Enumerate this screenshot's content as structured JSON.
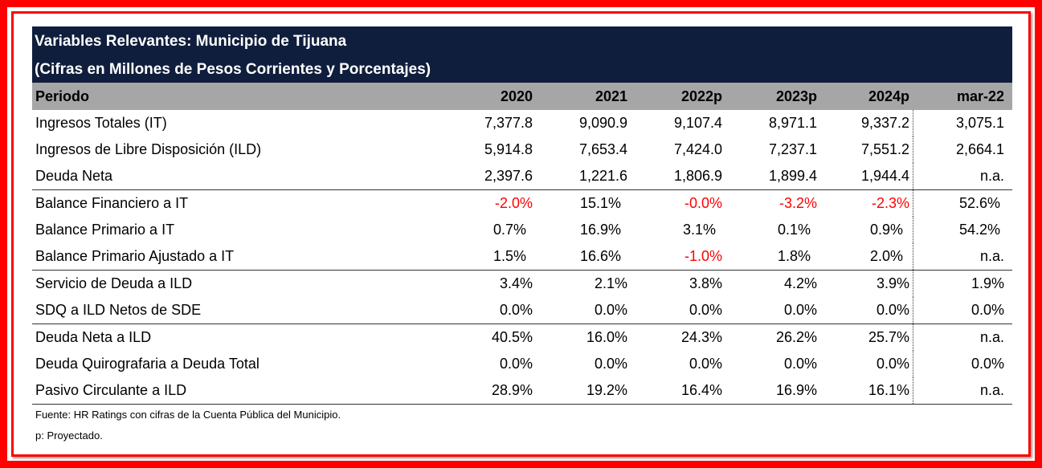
{
  "title_line1": "Variables Relevantes: Municipio de Tijuana",
  "title_line2": "(Cifras en Millones de Pesos Corrientes y Porcentajes)",
  "header": [
    "Periodo",
    "2020",
    "2021",
    "2022p",
    "2023p",
    "2024p",
    "mar-22"
  ],
  "rows": [
    {
      "label": "Ingresos Totales (IT)",
      "values": [
        "7,377.8",
        "9,090.9",
        "9,107.4",
        "8,971.1",
        "9,337.2",
        "3,075.1"
      ]
    },
    {
      "label": "Ingresos de Libre Disposición (ILD)",
      "values": [
        "5,914.8",
        "7,653.4",
        "7,424.0",
        "7,237.1",
        "7,551.2",
        "2,664.1"
      ]
    },
    {
      "label": "Deuda Neta",
      "values": [
        "2,397.6",
        "1,221.6",
        "1,806.9",
        "1,899.4",
        "1,944.4",
        "n.a."
      ],
      "sep": true
    },
    {
      "label": "Balance Financiero a IT",
      "values": [
        "-2.0%",
        "15.1%",
        "-0.0%",
        "-3.2%",
        "-2.3%",
        "52.6%"
      ],
      "indent": true
    },
    {
      "label": "Balance Primario a IT",
      "values": [
        "0.7%",
        "16.9%",
        "3.1%",
        "0.1%",
        "0.9%",
        "54.2%"
      ],
      "indent": true
    },
    {
      "label": "Balance Primario Ajustado a IT",
      "values": [
        "1.5%",
        "16.6%",
        "-1.0%",
        "1.8%",
        "2.0%",
        "n.a."
      ],
      "indent": true,
      "sep": true
    },
    {
      "label": "Servicio de Deuda a ILD",
      "values": [
        "3.4%",
        "2.1%",
        "3.8%",
        "4.2%",
        "3.9%",
        "1.9%"
      ]
    },
    {
      "label": "SDQ a ILD Netos de SDE",
      "values": [
        "0.0%",
        "0.0%",
        "0.0%",
        "0.0%",
        "0.0%",
        "0.0%"
      ],
      "sep": true
    },
    {
      "label": "Deuda Neta a ILD",
      "values": [
        "40.5%",
        "16.0%",
        "24.3%",
        "26.2%",
        "25.7%",
        "n.a."
      ]
    },
    {
      "label": "Deuda Quirografaria a Deuda Total",
      "values": [
        "0.0%",
        "0.0%",
        "0.0%",
        "0.0%",
        "0.0%",
        "0.0%"
      ]
    },
    {
      "label": "Pasivo Circulante a ILD",
      "values": [
        "28.9%",
        "19.2%",
        "16.4%",
        "16.9%",
        "16.1%",
        "n.a."
      ],
      "sep": true
    }
  ],
  "footnote_source": "Fuente: HR Ratings con cifras de la Cuenta Pública del Municipio.",
  "footnote_projected": "p: Proyectado.",
  "colors": {
    "frame": "#ff0000",
    "title_bg": "#0f1e3c",
    "header_bg": "#a6a6a6",
    "negative": "#ff0000"
  }
}
